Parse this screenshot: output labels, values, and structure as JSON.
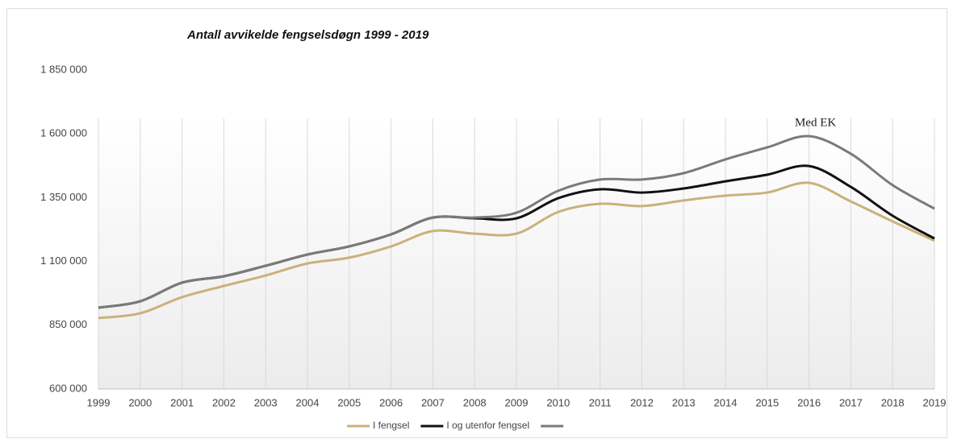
{
  "chart_data": {
    "type": "line",
    "title": "Antall avvikelde fengselsdøgn 1999 - 2019",
    "annotation": "Med EK",
    "categories": [
      "1999",
      "2000",
      "2001",
      "2002",
      "2003",
      "2004",
      "2005",
      "2006",
      "2007",
      "2008",
      "2009",
      "2010",
      "2011",
      "2012",
      "2013",
      "2014",
      "2015",
      "2016",
      "2017",
      "2018",
      "2019"
    ],
    "series": [
      {
        "name": "I  fengsel",
        "color": "#c9b27a",
        "values": [
          878000,
          897000,
          960000,
          1004000,
          1045000,
          1092000,
          1115000,
          1159000,
          1219000,
          1209000,
          1209000,
          1294000,
          1326000,
          1317000,
          1339000,
          1358000,
          1370000,
          1408000,
          1335000,
          1257000,
          1181000
        ]
      },
      {
        "name": "I og utenfor fengsel",
        "color": "#111111",
        "values": [
          919000,
          944000,
          1017000,
          1042000,
          1083000,
          1127000,
          1159000,
          1206000,
          1272000,
          1269000,
          1269000,
          1348000,
          1383000,
          1370000,
          1386000,
          1414000,
          1440000,
          1474000,
          1392000,
          1279000,
          1190000
        ]
      },
      {
        "color": "#7a7a7a",
        "values": [
          919000,
          944000,
          1017000,
          1042000,
          1083000,
          1127000,
          1159000,
          1206000,
          1272000,
          1272000,
          1291000,
          1377000,
          1421000,
          1421000,
          1446000,
          1500000,
          1547000,
          1591000,
          1522000,
          1399000,
          1307000
        ]
      }
    ],
    "ylim": [
      600000,
      1850000
    ],
    "yticks": [
      {
        "value": 600000,
        "label": "600 000"
      },
      {
        "value": 850000,
        "label": "850 000"
      },
      {
        "value": 1100000,
        "label": "1 100 000"
      },
      {
        "value": 1350000,
        "label": "1 350 000"
      },
      {
        "value": 1600000,
        "label": "1 600 000"
      },
      {
        "value": 1850000,
        "label": "1 850 000"
      }
    ],
    "grid": true
  }
}
